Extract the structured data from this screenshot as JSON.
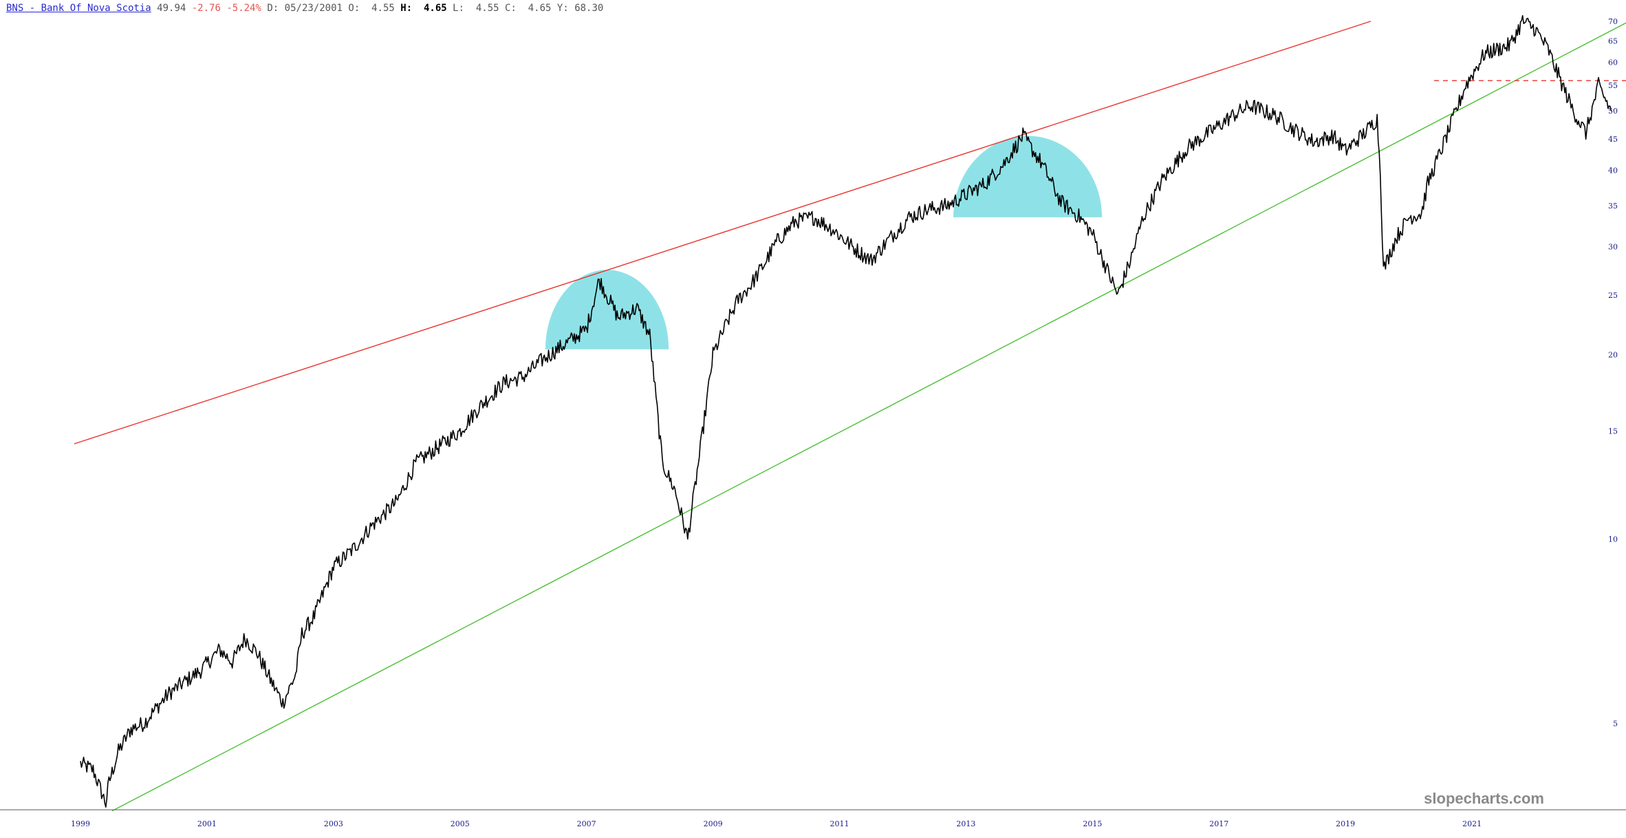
{
  "header": {
    "symbol_label": "BNS - Bank Of Nova Scotia",
    "last": "49.94",
    "change": "-2.76",
    "change_pct": "-5.24%",
    "d_label": "D:",
    "date": "05/23/2001",
    "o_label": "O:",
    "open": "4.55",
    "h_label": "H:",
    "high": "4.65",
    "l_label": "L:",
    "low": "4.55",
    "c_label": "C:",
    "close": "4.65",
    "y_label": "Y:",
    "y_value": "68.30"
  },
  "watermark": "slopecharts.com",
  "colors": {
    "price": "#000000",
    "resistance": "#e8332c",
    "support": "#4cbf36",
    "dome": "#58d4dc",
    "level_line": "#e8332c",
    "axis_text": "#1a1a8a"
  },
  "chart_data": {
    "type": "line",
    "title": "BNS - Bank Of Nova Scotia",
    "y_scale": "log",
    "ylim": [
      3.7,
      72
    ],
    "xlim": [
      1998.9,
      2023.6
    ],
    "x_ticks": [
      "1999",
      "2001",
      "2003",
      "2005",
      "2007",
      "2009",
      "2011",
      "2013",
      "2015",
      "2017",
      "2019",
      "2021"
    ],
    "y_ticks": [
      5,
      10,
      15,
      20,
      25,
      30,
      35,
      40,
      45,
      50,
      55,
      60,
      65,
      70
    ],
    "grid": false,
    "series": [
      {
        "x": [
          1999.0,
          1999.2,
          1999.4,
          1999.45,
          1999.6,
          1999.8,
          2000.0,
          2000.2,
          2000.4,
          2000.6,
          2000.9,
          2001.2,
          2001.4,
          2001.6,
          2001.8,
          2002.0,
          2002.2,
          2002.4,
          2002.5,
          2002.7,
          2003.0,
          2003.3,
          2003.6,
          2004.0,
          2004.3,
          2004.6,
          2005.0,
          2005.3,
          2005.7,
          2006.0,
          2006.3,
          2006.6,
          2007.0,
          2007.2,
          2007.5,
          2007.8,
          2008.0,
          2008.2,
          2008.4,
          2008.6,
          2008.8,
          2009.0,
          2009.2,
          2009.4,
          2009.6,
          2009.8,
          2010.0,
          2010.3,
          2010.6,
          2010.9,
          2011.2,
          2011.5,
          2011.8,
          2012.1,
          2012.4,
          2012.7,
          2013.0,
          2013.3,
          2013.6,
          2013.9,
          2014.2,
          2014.5,
          2014.8,
          2015.0,
          2015.2,
          2015.4,
          2015.6,
          2015.8,
          2016.1,
          2016.5,
          2016.9,
          2017.2,
          2017.5,
          2017.9,
          2018.2,
          2018.5,
          2018.8,
          2019.0,
          2019.3,
          2019.5,
          2019.55,
          2019.6,
          2019.8,
          2020.0,
          2020.2,
          2020.3,
          2020.6,
          2020.9,
          2021.2,
          2021.6,
          2021.8,
          2022.0,
          2022.2,
          2022.4,
          2022.6,
          2022.8,
          2023.0,
          2023.2
        ],
        "y": [
          4.3,
          4.2,
          3.7,
          4.0,
          4.5,
          4.9,
          5.0,
          5.3,
          5.6,
          5.8,
          6.1,
          6.6,
          6.3,
          6.9,
          6.5,
          5.9,
          5.4,
          6.0,
          7.0,
          7.5,
          9.0,
          9.6,
          10.5,
          11.5,
          13.3,
          14.0,
          15.0,
          16.4,
          18.0,
          18.4,
          19.6,
          20.6,
          22.0,
          26.5,
          23.0,
          23.8,
          21.5,
          13.3,
          12.0,
          10.0,
          14.0,
          20.0,
          22.3,
          24.6,
          26.0,
          28.0,
          30.5,
          33.0,
          33.5,
          32.0,
          30.0,
          28.5,
          31.0,
          33.5,
          34.5,
          35.0,
          36.5,
          38.0,
          41.0,
          45.5,
          41.0,
          35.5,
          33.5,
          31.5,
          28.0,
          25.0,
          28.5,
          33.5,
          38.5,
          43.5,
          46.5,
          49.0,
          51.0,
          49.0,
          46.5,
          44.5,
          45.5,
          43.0,
          46.0,
          48.5,
          40.0,
          27.5,
          31.0,
          33.5,
          34.0,
          38.0,
          45.5,
          55.0,
          62.0,
          64.0,
          70.0,
          68.0,
          63.0,
          56.0,
          50.0,
          46.0,
          55.0,
          49.94
        ]
      }
    ],
    "trendlines": [
      {
        "name": "",
        "color": "resistance",
        "x": [
          1998.9,
          2019.4
        ],
        "y": [
          14.3,
          70.0
        ]
      },
      {
        "name": "",
        "color": "support",
        "x": [
          1999.5,
          2023.6
        ],
        "y": [
          3.6,
          71.0
        ]
      }
    ],
    "level": {
      "y": 56.0,
      "x_from": 2020.4,
      "style": "dashed"
    },
    "domes": [
      {
        "x_from": 2006.35,
        "x_to": 2008.3,
        "y_base": 20.4,
        "y_top": 27.5
      },
      {
        "x_from": 2012.8,
        "x_to": 2015.15,
        "y_base": 33.5,
        "y_top": 45.5
      }
    ]
  }
}
